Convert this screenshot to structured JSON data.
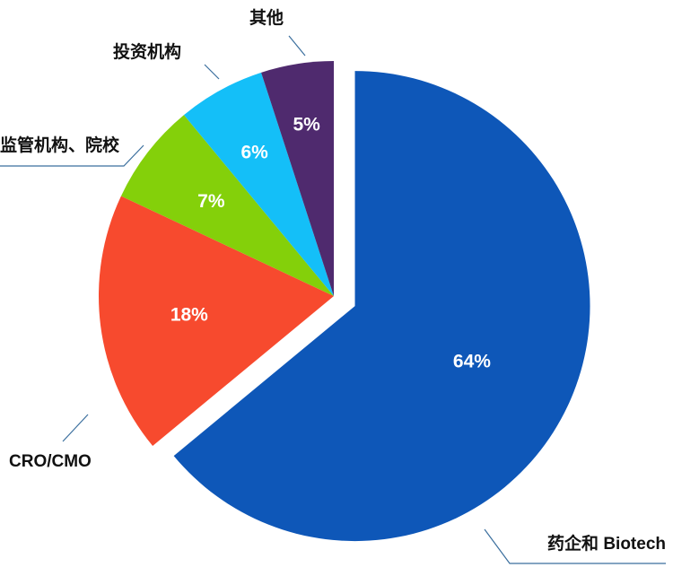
{
  "chart_data": {
    "type": "pie",
    "title": "",
    "legend": "none",
    "slices": [
      {
        "name": "药企和 Biotech",
        "value": 64,
        "label": "64%",
        "color": "#0e57b8",
        "exploded": true
      },
      {
        "name": "CRO/CMO",
        "value": 18,
        "label": "18%",
        "color": "#f74a2e"
      },
      {
        "name": "监管机构、院校",
        "value": 7,
        "label": "7%",
        "color": "#84d00a"
      },
      {
        "name": "投资机构",
        "value": 6,
        "label": "6%",
        "color": "#14bff8"
      },
      {
        "name": "其他",
        "value": 5,
        "label": "5%",
        "color": "#4f2a6e"
      }
    ]
  }
}
